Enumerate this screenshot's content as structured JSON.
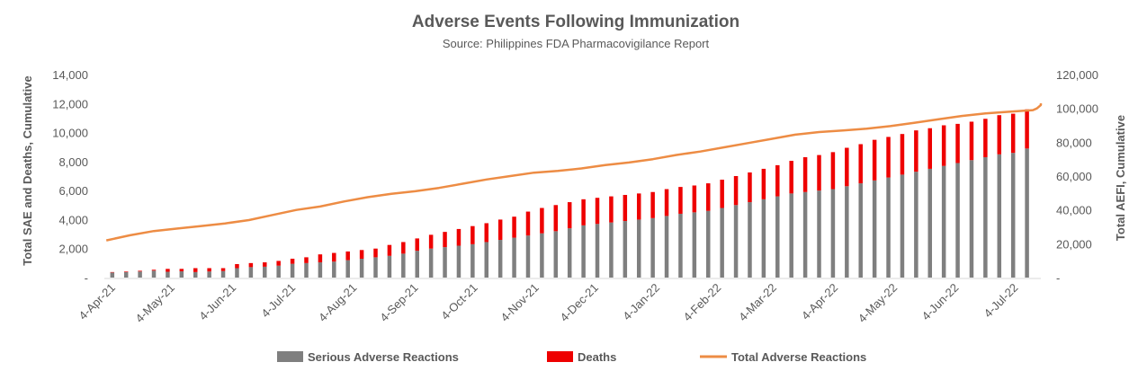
{
  "chart_data": {
    "type": "bar",
    "title": "Adverse Events Following Immunization",
    "subtitle": "Source: Philippines FDA Pharmacovigilance Report",
    "ylabel_left": "Total SAE and Deaths, Cumulative",
    "ylabel_right": "Total AEFI, Cumulative",
    "ylim_left": [
      0,
      14000
    ],
    "ylim_right": [
      0,
      120000
    ],
    "yticks_left": [
      "-",
      "2,000",
      "4,000",
      "6,000",
      "8,000",
      "10,000",
      "12,000",
      "14,000"
    ],
    "yticks_right": [
      "-",
      "20,000",
      "40,000",
      "60,000",
      "80,000",
      "100,000",
      "120,000"
    ],
    "x_domain": [
      "2021-03-31",
      "2022-07-17"
    ],
    "xtick_dates": [
      "2021-04-04",
      "2021-05-04",
      "2021-06-04",
      "2021-07-04",
      "2021-08-04",
      "2021-09-04",
      "2021-10-04",
      "2021-11-04",
      "2021-12-04",
      "2022-01-04",
      "2022-02-04",
      "2022-03-04",
      "2022-04-04",
      "2022-05-04",
      "2022-06-04",
      "2022-07-04"
    ],
    "xtick_labels": [
      "4-Apr-21",
      "4-May-21",
      "4-Jun-21",
      "4-Jul-21",
      "4-Aug-21",
      "4-Sep-21",
      "4-Oct-21",
      "4-Nov-21",
      "4-Dec-21",
      "4-Jan-22",
      "4-Feb-22",
      "4-Mar-22",
      "4-Apr-22",
      "4-May-22",
      "4-Jun-22",
      "4-Jul-22"
    ],
    "bar_dates": [
      "2021-04-04",
      "2021-04-11",
      "2021-04-18",
      "2021-04-25",
      "2021-05-02",
      "2021-05-09",
      "2021-05-16",
      "2021-05-23",
      "2021-05-30",
      "2021-06-06",
      "2021-06-13",
      "2021-06-20",
      "2021-06-27",
      "2021-07-04",
      "2021-07-11",
      "2021-07-18",
      "2021-07-25",
      "2021-08-01",
      "2021-08-08",
      "2021-08-15",
      "2021-08-22",
      "2021-08-29",
      "2021-09-05",
      "2021-09-12",
      "2021-09-19",
      "2021-09-26",
      "2021-10-03",
      "2021-10-10",
      "2021-10-17",
      "2021-10-24",
      "2021-10-31",
      "2021-11-07",
      "2021-11-14",
      "2021-11-21",
      "2021-11-28",
      "2021-12-05",
      "2021-12-12",
      "2021-12-19",
      "2021-12-26",
      "2022-01-02",
      "2022-01-09",
      "2022-01-16",
      "2022-01-23",
      "2022-01-30",
      "2022-02-06",
      "2022-02-13",
      "2022-02-20",
      "2022-02-27",
      "2022-03-06",
      "2022-03-13",
      "2022-03-20",
      "2022-03-27",
      "2022-04-03",
      "2022-04-10",
      "2022-04-17",
      "2022-04-24",
      "2022-05-01",
      "2022-05-08",
      "2022-05-15",
      "2022-05-22",
      "2022-05-29",
      "2022-06-05",
      "2022-06-12",
      "2022-06-19",
      "2022-06-26",
      "2022-07-03",
      "2022-07-10"
    ],
    "series": [
      {
        "name": "Serious Adverse Reactions",
        "type": "bar",
        "axis": "left",
        "color": "#7f7f7f",
        "values": [
          350,
          380,
          420,
          480,
          400,
          430,
          380,
          420,
          450,
          650,
          720,
          750,
          820,
          950,
          1000,
          1050,
          1100,
          1200,
          1300,
          1400,
          1500,
          1650,
          1850,
          2000,
          2100,
          2200,
          2300,
          2450,
          2600,
          2750,
          2900,
          3050,
          3200,
          3400,
          3600,
          3700,
          3800,
          3900,
          4000,
          4100,
          4250,
          4400,
          4500,
          4600,
          4800,
          5000,
          5200,
          5400,
          5600,
          5800,
          5900,
          6000,
          6100,
          6300,
          6500,
          6700,
          6900,
          7100,
          7300,
          7500,
          7700,
          7900,
          8100,
          8300,
          8500,
          8600,
          8900
        ]
      },
      {
        "name": "Deaths",
        "type": "bar",
        "axis": "left",
        "color": "#ee0000",
        "values": [
          30,
          40,
          50,
          60,
          200,
          170,
          270,
          230,
          200,
          280,
          280,
          300,
          330,
          350,
          400,
          550,
          600,
          600,
          600,
          600,
          750,
          800,
          850,
          950,
          1050,
          1150,
          1250,
          1300,
          1400,
          1450,
          1650,
          1750,
          1800,
          1800,
          1800,
          1800,
          1800,
          1800,
          1800,
          1800,
          1850,
          1850,
          1850,
          1900,
          1950,
          2000,
          2050,
          2100,
          2150,
          2250,
          2400,
          2450,
          2550,
          2650,
          2700,
          2800,
          2800,
          2800,
          2850,
          2800,
          2800,
          2700,
          2650,
          2650,
          2700,
          2700,
          2700
        ]
      },
      {
        "name": "Total Adverse Reactions",
        "type": "line",
        "axis": "right",
        "color": "#ed8c44",
        "values": [
          22000,
          25000,
          27500,
          29000,
          30500,
          32000,
          34000,
          37000,
          40000,
          42000,
          45000,
          47500,
          49500,
          51000,
          53000,
          55500,
          58000,
          60000,
          62000,
          63000,
          64500,
          66500,
          68000,
          70000,
          72500,
          74500,
          77000,
          79500,
          82000,
          84500,
          86000,
          87000,
          88000,
          89500,
          91500,
          93500,
          95500,
          97000,
          98000,
          99000,
          100000,
          101000,
          102000,
          103000
        ]
      }
    ],
    "line_dates": [
      "2021-04-01",
      "2021-04-13",
      "2021-04-25",
      "2021-05-07",
      "2021-05-19",
      "2021-05-31",
      "2021-06-12",
      "2021-06-24",
      "2021-07-06",
      "2021-07-18",
      "2021-07-30",
      "2021-08-11",
      "2021-08-23",
      "2021-09-04",
      "2021-09-16",
      "2021-09-28",
      "2021-10-10",
      "2021-10-22",
      "2021-11-03",
      "2021-11-15",
      "2021-11-27",
      "2021-12-09",
      "2021-12-21",
      "2022-01-02",
      "2022-01-14",
      "2022-01-26",
      "2022-02-07",
      "2022-02-19",
      "2022-03-03",
      "2022-03-15",
      "2022-03-27",
      "2022-04-08",
      "2022-04-20",
      "2022-05-02",
      "2022-05-14",
      "2022-05-26",
      "2022-06-07",
      "2022-06-19",
      "2022-07-01",
      "2022-07-13",
      "2022-07-15",
      "2022-07-16",
      "2022-07-17",
      "2022-07-17"
    ],
    "legend_position": "bottom",
    "grid": false
  }
}
